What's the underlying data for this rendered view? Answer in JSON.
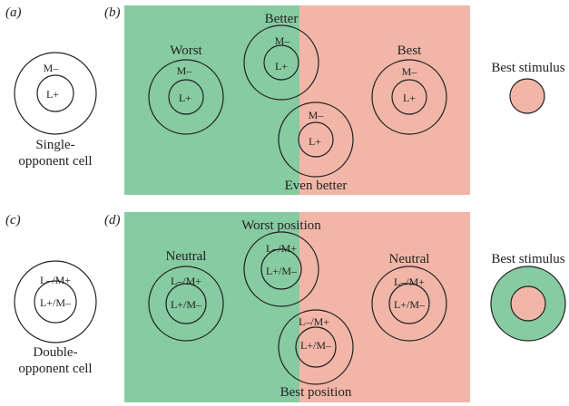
{
  "colors": {
    "green": "#86cba1",
    "red": "#f1b6a7",
    "outline": "#222222",
    "background": "#ffffff"
  },
  "panels": {
    "a": {
      "label": "(a)"
    },
    "b": {
      "label": "(b)"
    },
    "c": {
      "label": "(c)"
    },
    "d": {
      "label": "(d)"
    }
  },
  "cells": {
    "single": {
      "center": "L+",
      "surround": "M–",
      "caption_line1": "Single-",
      "caption_line2": "opponent cell"
    },
    "double": {
      "center": "L+/M–",
      "surround": "L–/M+",
      "caption_line1": "Double-",
      "caption_line2": "opponent cell"
    }
  },
  "panel_b": {
    "fields": [
      {
        "title": "Worst",
        "center": "L+",
        "surround": "M–"
      },
      {
        "title": "Better",
        "center": "L+",
        "surround": "M–"
      },
      {
        "title": "Even better",
        "center": "L+",
        "surround": "M–"
      },
      {
        "title": "Best",
        "center": "L+",
        "surround": "M–"
      }
    ],
    "stimulus_label": "Best stimulus"
  },
  "panel_d": {
    "fields": [
      {
        "title": "Neutral",
        "center": "L+/M–",
        "surround": "L–/M+"
      },
      {
        "title": "Worst position",
        "center": "L+/M–",
        "surround": "L–/M+"
      },
      {
        "title": "Best position",
        "center": "L+/M–",
        "surround": "L–/M+"
      },
      {
        "title": "Neutral",
        "center": "L+/M–",
        "surround": "L–/M+"
      }
    ],
    "stimulus_label": "Best stimulus"
  }
}
